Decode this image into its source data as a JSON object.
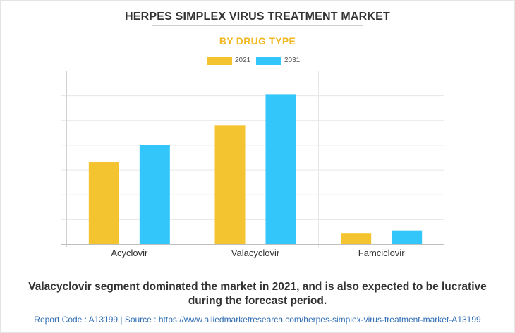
{
  "header": {
    "title": "HERPES SIMPLEX VIRUS TREATMENT MARKET",
    "subtitle": "BY  DRUG TYPE"
  },
  "colors": {
    "series_2021": "#f4c430",
    "series_2031": "#33c6fb"
  },
  "chart_data": {
    "type": "bar",
    "title": "HERPES SIMPLEX VIRUS TREATMENT MARKET",
    "subtitle": "BY  DRUG TYPE",
    "categories": [
      "Acyclovir",
      "Valacyclovir",
      "Famciclovir"
    ],
    "series": [
      {
        "name": "2021",
        "values": [
          3.3,
          4.8,
          0.45
        ]
      },
      {
        "name": "2031",
        "values": [
          4.0,
          6.05,
          0.55
        ]
      }
    ],
    "ylim": [
      0,
      7
    ],
    "y_axis_labels_shown": false,
    "grid": true,
    "legend_position": "top-center"
  },
  "caption": "Valacyclovir segment dominated the market in 2021, and is also expected to be lucrative during the forecast period.",
  "footer": "Report Code : A13199  |  Source : https://www.alliedmarketresearch.com/herpes-simplex-virus-treatment-market-A13199"
}
